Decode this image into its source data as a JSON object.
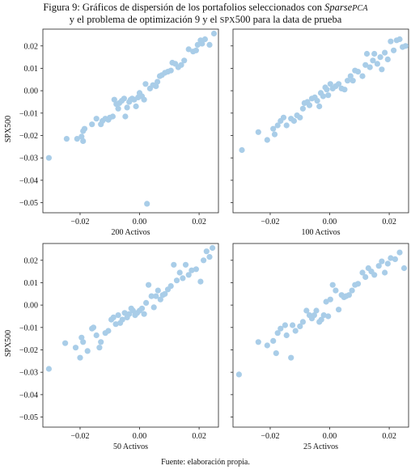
{
  "caption": {
    "line1_prefix": "Figura 9: Gráficos de dispersión de los portafolios seleccionados con ",
    "line1_method": "Sparse",
    "line1_method_sc": "PCA",
    "line2_a": "y el problema de optimización 9 y el ",
    "line2_sc": "SPX",
    "line2_b": "500 para la data de prueba"
  },
  "source": "Fuente: elaboración propia.",
  "style": {
    "point_color": "#a9cde8"
  },
  "chart_data": [
    {
      "type": "scatter",
      "panel": "top-left",
      "xlabel": "200 Activos",
      "ylabel": "SPX500",
      "xticks": [
        -0.02,
        0.0,
        0.02
      ],
      "xtick_labels": [
        "−0.02",
        "0.00",
        "0.02"
      ],
      "yticks": [
        0.02,
        0.01,
        0.0,
        -0.01,
        -0.02,
        -0.03,
        -0.04,
        -0.05
      ],
      "ytick_labels": [
        "0.02",
        "0.01",
        "0.00",
        "−0.01",
        "−0.02",
        "−0.03",
        "−0.04",
        "−0.05"
      ],
      "xlim": [
        -0.0325,
        0.0265
      ],
      "ylim": [
        -0.0545,
        0.0275
      ],
      "points": [
        [
          -0.0305,
          -0.03
        ],
        [
          -0.0245,
          -0.0215
        ],
        [
          -0.021,
          -0.0215
        ],
        [
          -0.0195,
          -0.0205
        ],
        [
          -0.019,
          -0.0225
        ],
        [
          -0.019,
          -0.018
        ],
        [
          -0.0185,
          -0.017
        ],
        [
          -0.016,
          -0.015
        ],
        [
          -0.0145,
          -0.0125
        ],
        [
          -0.013,
          -0.015
        ],
        [
          -0.0125,
          -0.0135
        ],
        [
          -0.0115,
          -0.0125
        ],
        [
          -0.0105,
          -0.013
        ],
        [
          -0.01,
          -0.012
        ],
        [
          -0.009,
          -0.0115
        ],
        [
          -0.0085,
          -0.004
        ],
        [
          -0.0078,
          -0.006
        ],
        [
          -0.0072,
          -0.008
        ],
        [
          -0.0068,
          -0.0055
        ],
        [
          -0.006,
          -0.0045
        ],
        [
          -0.0052,
          -0.0035
        ],
        [
          -0.0048,
          -0.0115
        ],
        [
          -0.0042,
          -0.0075
        ],
        [
          -0.0035,
          -0.005
        ],
        [
          -0.003,
          -0.004
        ],
        [
          -0.0025,
          -0.0035
        ],
        [
          -0.0018,
          -0.004
        ],
        [
          -0.0012,
          -0.007
        ],
        [
          -0.0005,
          -0.003
        ],
        [
          0.0,
          -0.001
        ],
        [
          0.0008,
          -0.0025
        ],
        [
          0.0015,
          -0.004
        ],
        [
          0.002,
          0.003
        ],
        [
          0.0025,
          -0.0505
        ],
        [
          0.0035,
          0.001
        ],
        [
          0.0045,
          0.0025
        ],
        [
          0.0055,
          0.002
        ],
        [
          0.006,
          0.004
        ],
        [
          0.0068,
          0.0065
        ],
        [
          0.0075,
          0.007
        ],
        [
          0.0085,
          0.008
        ],
        [
          0.0095,
          0.0085
        ],
        [
          0.0105,
          0.009
        ],
        [
          0.011,
          0.0125
        ],
        [
          0.012,
          0.012
        ],
        [
          0.013,
          0.0105
        ],
        [
          0.014,
          0.0115
        ],
        [
          0.015,
          0.0135
        ],
        [
          0.0165,
          0.0185
        ],
        [
          0.018,
          0.0175
        ],
        [
          0.019,
          0.018
        ],
        [
          0.0195,
          0.0205
        ],
        [
          0.0205,
          0.0225
        ],
        [
          0.021,
          0.021
        ],
        [
          0.022,
          0.023
        ],
        [
          0.0235,
          0.0205
        ],
        [
          0.025,
          0.0255
        ]
      ]
    },
    {
      "type": "scatter",
      "panel": "top-right",
      "xlabel": "100 Activos",
      "ylabel": "",
      "xticks": [
        -0.02,
        0.0,
        0.02
      ],
      "xtick_labels": [
        "−0.02",
        "0.00",
        "0.02"
      ],
      "yticks": [
        0.02,
        0.01,
        0.0,
        -0.01,
        -0.02,
        -0.03,
        -0.04,
        -0.05
      ],
      "ytick_labels": [],
      "xlim": [
        -0.0325,
        0.0265
      ],
      "ylim": [
        -0.0545,
        0.0275
      ],
      "points": [
        [
          -0.0295,
          -0.0265
        ],
        [
          -0.024,
          -0.0185
        ],
        [
          -0.021,
          -0.022
        ],
        [
          -0.019,
          -0.017
        ],
        [
          -0.0185,
          -0.0195
        ],
        [
          -0.0175,
          -0.0155
        ],
        [
          -0.0165,
          -0.0135
        ],
        [
          -0.0155,
          -0.012
        ],
        [
          -0.0145,
          -0.0155
        ],
        [
          -0.013,
          -0.0125
        ],
        [
          -0.012,
          -0.0135
        ],
        [
          -0.011,
          -0.011
        ],
        [
          -0.01,
          -0.012
        ],
        [
          -0.009,
          -0.008
        ],
        [
          -0.0085,
          -0.0055
        ],
        [
          -0.0075,
          -0.005
        ],
        [
          -0.0068,
          -0.0065
        ],
        [
          -0.006,
          -0.0035
        ],
        [
          -0.005,
          -0.003
        ],
        [
          -0.0042,
          -0.0045
        ],
        [
          -0.0035,
          -0.007
        ],
        [
          -0.003,
          -0.001
        ],
        [
          -0.0022,
          -0.0025
        ],
        [
          -0.0015,
          0.0015
        ],
        [
          -0.001,
          0.0005
        ],
        [
          -0.0005,
          -0.002
        ],
        [
          0.0002,
          0.003
        ],
        [
          0.001,
          0.001
        ],
        [
          0.002,
          0.002
        ],
        [
          0.003,
          0.003
        ],
        [
          0.004,
          0.001
        ],
        [
          0.005,
          0.0005
        ],
        [
          0.006,
          0.0045
        ],
        [
          0.007,
          0.0065
        ],
        [
          0.0078,
          0.0045
        ],
        [
          0.0085,
          0.009
        ],
        [
          0.0095,
          0.0085
        ],
        [
          0.011,
          0.0065
        ],
        [
          0.012,
          0.0115
        ],
        [
          0.0125,
          0.0165
        ],
        [
          0.0135,
          0.0105
        ],
        [
          0.0145,
          0.0135
        ],
        [
          0.015,
          0.0165
        ],
        [
          0.016,
          0.012
        ],
        [
          0.017,
          0.015
        ],
        [
          0.0175,
          0.0095
        ],
        [
          0.0185,
          0.017
        ],
        [
          0.0195,
          0.014
        ],
        [
          0.0205,
          0.022
        ],
        [
          0.0215,
          0.018
        ],
        [
          0.0225,
          0.0225
        ],
        [
          0.0235,
          0.023
        ],
        [
          0.0245,
          0.0195
        ],
        [
          0.0255,
          0.02
        ]
      ]
    },
    {
      "type": "scatter",
      "panel": "bottom-left",
      "xlabel": "50 Activos",
      "ylabel": "SPX500",
      "xticks": [
        -0.02,
        0.0,
        0.02
      ],
      "xtick_labels": [
        "−0.02",
        "0.00",
        "0.02"
      ],
      "yticks": [
        0.02,
        0.01,
        0.0,
        -0.01,
        -0.02,
        -0.03,
        -0.04,
        -0.05
      ],
      "ytick_labels": [
        "0.02",
        "0.01",
        "0.00",
        "−0.01",
        "−0.02",
        "−0.03",
        "−0.04",
        "−0.05"
      ],
      "xlim": [
        -0.0325,
        0.0265
      ],
      "ylim": [
        -0.0545,
        0.0275
      ],
      "points": [
        [
          -0.0305,
          -0.0285
        ],
        [
          -0.025,
          -0.017
        ],
        [
          -0.0215,
          -0.019
        ],
        [
          -0.02,
          -0.0235
        ],
        [
          -0.0195,
          -0.0145
        ],
        [
          -0.019,
          -0.0165
        ],
        [
          -0.0175,
          -0.0205
        ],
        [
          -0.016,
          -0.0105
        ],
        [
          -0.0155,
          -0.01
        ],
        [
          -0.0145,
          -0.0135
        ],
        [
          -0.0135,
          -0.019
        ],
        [
          -0.013,
          -0.0165
        ],
        [
          -0.0115,
          -0.0125
        ],
        [
          -0.0105,
          -0.0115
        ],
        [
          -0.0095,
          -0.0065
        ],
        [
          -0.0088,
          -0.0055
        ],
        [
          -0.008,
          -0.0085
        ],
        [
          -0.0072,
          -0.0045
        ],
        [
          -0.0065,
          -0.008
        ],
        [
          -0.0058,
          -0.0065
        ],
        [
          -0.005,
          -0.0035
        ],
        [
          -0.0042,
          -0.0055
        ],
        [
          -0.0035,
          -0.004
        ],
        [
          -0.0028,
          -0.0015
        ],
        [
          -0.0022,
          -0.0025
        ],
        [
          -0.0015,
          -0.0045
        ],
        [
          -0.0008,
          -0.0035
        ],
        [
          0.0,
          -0.0025
        ],
        [
          0.0008,
          -0.0015
        ],
        [
          0.0015,
          -0.004
        ],
        [
          0.0022,
          0.001
        ],
        [
          0.003,
          0.009
        ],
        [
          0.004,
          0.004
        ],
        [
          0.0048,
          -0.001
        ],
        [
          0.0055,
          0.004
        ],
        [
          0.0062,
          0.0065
        ],
        [
          0.007,
          0.0025
        ],
        [
          0.0078,
          0.0045
        ],
        [
          0.0085,
          0.005
        ],
        [
          0.0095,
          0.007
        ],
        [
          0.0105,
          0.0085
        ],
        [
          0.0115,
          0.018
        ],
        [
          0.0125,
          0.011
        ],
        [
          0.0135,
          0.0145
        ],
        [
          0.0145,
          0.012
        ],
        [
          0.0155,
          0.018
        ],
        [
          0.0165,
          0.0135
        ],
        [
          0.0175,
          0.0155
        ],
        [
          0.019,
          0.016
        ],
        [
          0.0205,
          0.0105
        ],
        [
          0.0215,
          0.02
        ],
        [
          0.0225,
          0.024
        ],
        [
          0.0235,
          0.0215
        ],
        [
          0.0245,
          0.0255
        ]
      ]
    },
    {
      "type": "scatter",
      "panel": "bottom-right",
      "xlabel": "25 Activos",
      "ylabel": "",
      "xticks": [
        -0.02,
        0.0,
        0.02
      ],
      "xtick_labels": [
        "−0.02",
        "0.00",
        "0.02"
      ],
      "yticks": [
        0.02,
        0.01,
        0.0,
        -0.01,
        -0.02,
        -0.03,
        -0.04,
        -0.05
      ],
      "ytick_labels": [],
      "xlim": [
        -0.0325,
        0.0265
      ],
      "ylim": [
        -0.0545,
        0.0275
      ],
      "points": [
        [
          -0.0305,
          -0.031
        ],
        [
          -0.024,
          -0.0165
        ],
        [
          -0.021,
          -0.018
        ],
        [
          -0.019,
          -0.016
        ],
        [
          -0.018,
          -0.0215
        ],
        [
          -0.0175,
          -0.0125
        ],
        [
          -0.0165,
          -0.0105
        ],
        [
          -0.015,
          -0.009
        ],
        [
          -0.0145,
          -0.0135
        ],
        [
          -0.013,
          -0.0235
        ],
        [
          -0.0125,
          -0.009
        ],
        [
          -0.0115,
          -0.0115
        ],
        [
          -0.01,
          -0.0095
        ],
        [
          -0.009,
          -0.0075
        ],
        [
          -0.0078,
          -0.0025
        ],
        [
          -0.0068,
          -0.0045
        ],
        [
          -0.006,
          -0.006
        ],
        [
          -0.0052,
          -0.0045
        ],
        [
          -0.0045,
          -0.0025
        ],
        [
          -0.0035,
          -0.0075
        ],
        [
          -0.0028,
          -0.0065
        ],
        [
          -0.002,
          -0.0045
        ],
        [
          -0.0012,
          0.0015
        ],
        [
          -0.0005,
          -0.005
        ],
        [
          0.0002,
          0.0025
        ],
        [
          0.001,
          0.009
        ],
        [
          0.002,
          0.0065
        ],
        [
          0.003,
          -0.002
        ],
        [
          0.004,
          0.0045
        ],
        [
          0.0048,
          0.0035
        ],
        [
          0.0055,
          0.004
        ],
        [
          0.0065,
          0.0045
        ],
        [
          0.0075,
          0.0065
        ],
        [
          0.0085,
          0.009
        ],
        [
          0.0095,
          0.0095
        ],
        [
          0.011,
          0.0145
        ],
        [
          0.012,
          0.0125
        ],
        [
          0.013,
          0.0165
        ],
        [
          0.014,
          0.015
        ],
        [
          0.015,
          0.0135
        ],
        [
          0.0165,
          0.0175
        ],
        [
          0.0175,
          0.0195
        ],
        [
          0.0185,
          0.0145
        ],
        [
          0.0195,
          0.0185
        ],
        [
          0.0205,
          0.021
        ],
        [
          0.022,
          0.0205
        ],
        [
          0.0235,
          0.0235
        ],
        [
          0.025,
          0.0165
        ]
      ]
    }
  ]
}
